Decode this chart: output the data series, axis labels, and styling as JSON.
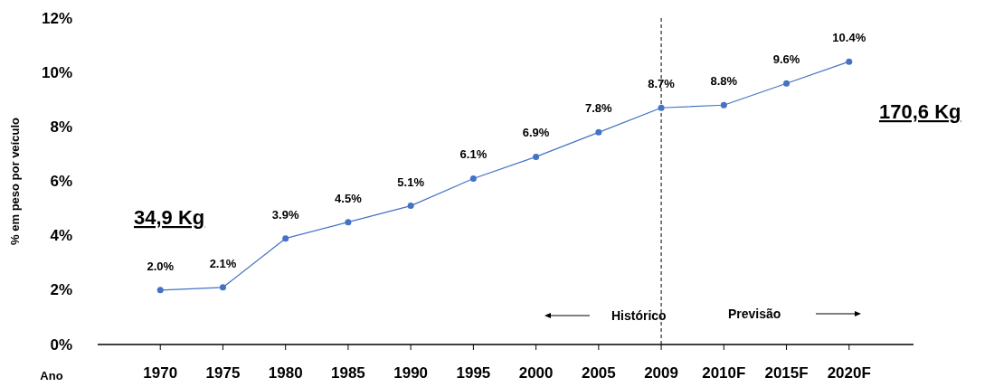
{
  "chart_data": {
    "type": "line",
    "xlabel": "Ano",
    "ylabel": "% em peso por veículo",
    "categories": [
      "1970",
      "1975",
      "1980",
      "1985",
      "1990",
      "1995",
      "2000",
      "2005",
      "2009",
      "2010F",
      "2015F",
      "2020F"
    ],
    "series": [
      {
        "color": "#4472c4",
        "values": [
          2.0,
          2.1,
          3.9,
          4.5,
          5.1,
          6.1,
          6.9,
          7.8,
          8.7,
          8.8,
          9.6,
          10.4
        ],
        "value_labels": [
          "2.0%",
          "2.1%",
          "3.9%",
          "4.5%",
          "5.1%",
          "6.1%",
          "6.9%",
          "7.8%",
          "8.7%",
          "8.8%",
          "9.6%",
          "10.4%"
        ]
      }
    ],
    "ylim": [
      0,
      12
    ],
    "yticks": [
      {
        "value": 0,
        "label": "0%"
      },
      {
        "value": 2,
        "label": "2%"
      },
      {
        "value": 4,
        "label": "4%"
      },
      {
        "value": 6,
        "label": "6%"
      },
      {
        "value": 8,
        "label": "8%"
      },
      {
        "value": 10,
        "label": "10%"
      },
      {
        "value": 12,
        "label": "12%"
      }
    ],
    "ref_lines": [
      {
        "axis": "x",
        "value": "2009",
        "color": "#000000",
        "line_style": "dashed"
      }
    ],
    "annotations": [
      "34,9 Kg",
      "170,6 Kg",
      "Histórico",
      "Previsão"
    ],
    "marker": "circle",
    "line_style": "solid"
  }
}
